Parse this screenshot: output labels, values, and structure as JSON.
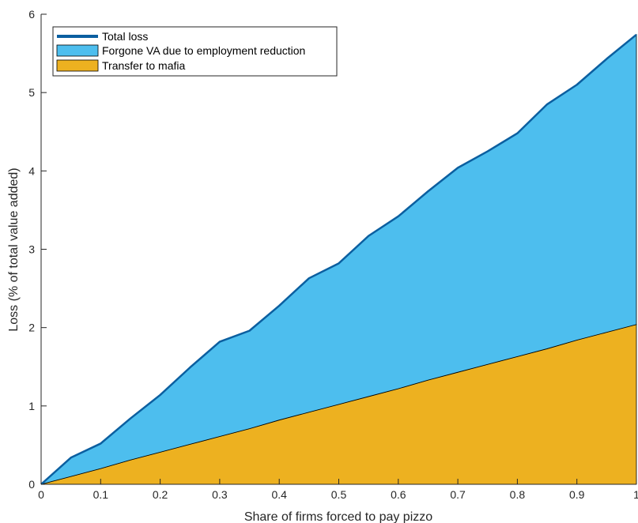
{
  "chart_data": {
    "type": "area",
    "xlabel": "Share of firms forced to pay pizzo",
    "ylabel": "Loss (% of total value added)",
    "xlim": [
      0,
      1
    ],
    "ylim": [
      0,
      6
    ],
    "xticks": [
      0,
      0.1,
      0.2,
      0.3,
      0.4,
      0.5,
      0.6,
      0.7,
      0.8,
      0.9,
      1
    ],
    "xtick_labels": [
      "0",
      "0.1",
      "0.2",
      "0.3",
      "0.4",
      "0.5",
      "0.6",
      "0.7",
      "0.8",
      "0.9",
      "1"
    ],
    "yticks": [
      0,
      1,
      2,
      3,
      4,
      5,
      6
    ],
    "ytick_labels": [
      "0",
      "1",
      "2",
      "3",
      "4",
      "5",
      "6"
    ],
    "grid": false,
    "legend_position": "top-left",
    "x": [
      0,
      0.05,
      0.1,
      0.15,
      0.2,
      0.25,
      0.3,
      0.35,
      0.4,
      0.45,
      0.5,
      0.55,
      0.6,
      0.65,
      0.7,
      0.75,
      0.8,
      0.85,
      0.9,
      0.95,
      1
    ],
    "series": [
      {
        "name": "Transfer to mafia",
        "kind": "area",
        "color": "#EDB120",
        "values": [
          0,
          0.1,
          0.2,
          0.31,
          0.41,
          0.51,
          0.61,
          0.71,
          0.82,
          0.92,
          1.02,
          1.12,
          1.22,
          1.33,
          1.43,
          1.53,
          1.63,
          1.73,
          1.84,
          1.94,
          2.04
        ]
      },
      {
        "name": "Forgone VA due to employment reduction",
        "kind": "area",
        "color": "#4DBEEE",
        "values": [
          0,
          0.24,
          0.32,
          0.53,
          0.73,
          0.98,
          1.21,
          1.25,
          1.46,
          1.71,
          1.8,
          2.05,
          2.2,
          2.41,
          2.61,
          2.72,
          2.85,
          3.12,
          3.26,
          3.49,
          3.7
        ]
      },
      {
        "name": "Total loss",
        "kind": "line",
        "color": "#0B5FA0",
        "values": [
          0,
          0.34,
          0.52,
          0.84,
          1.14,
          1.49,
          1.82,
          1.96,
          2.28,
          2.63,
          2.82,
          3.17,
          3.42,
          3.74,
          4.04,
          4.25,
          4.48,
          4.85,
          5.1,
          5.43,
          5.74
        ]
      }
    ]
  },
  "legend": {
    "items": [
      {
        "label": "Total loss",
        "color": "#0B5FA0",
        "kind": "line"
      },
      {
        "label": "Forgone VA due to employment reduction",
        "color": "#4DBEEE",
        "kind": "patch"
      },
      {
        "label": "Transfer to mafia",
        "color": "#EDB120",
        "kind": "patch"
      }
    ]
  }
}
